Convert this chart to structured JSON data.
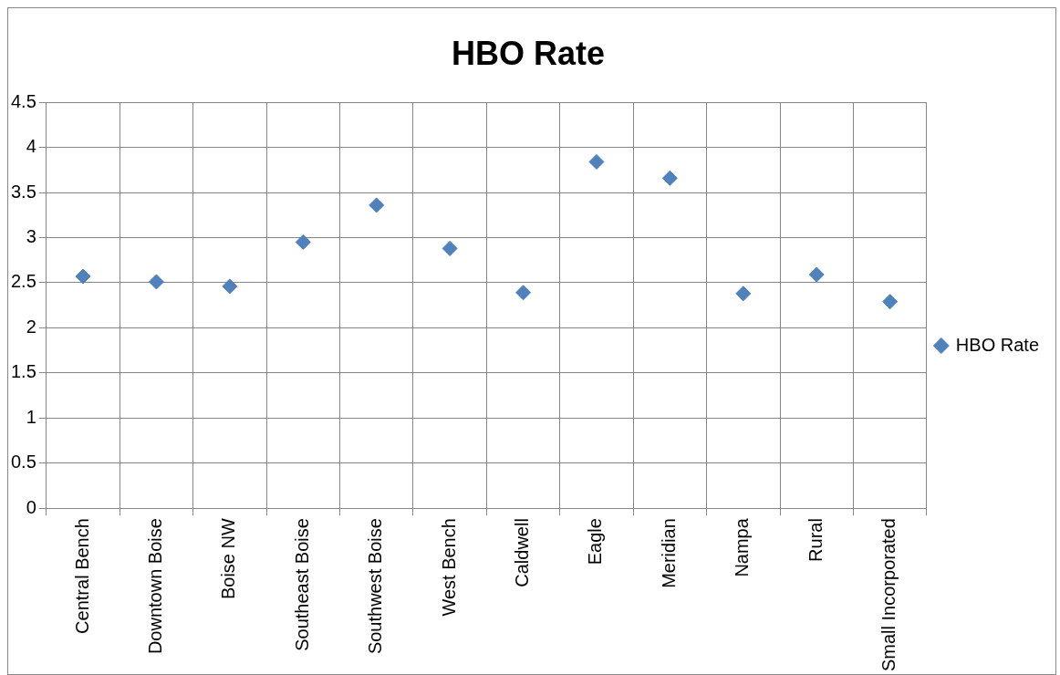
{
  "chart_data": {
    "type": "scatter",
    "title": "HBO Rate",
    "categories": [
      "Central Bench",
      "Downtown Boise",
      "Boise NW",
      "Southeast Boise",
      "Southwest Boise",
      "West Bench",
      "Caldwell",
      "Eagle",
      "Meridian",
      "Nampa",
      "Rural",
      "Small Incorporated"
    ],
    "series": [
      {
        "name": "HBO Rate",
        "color": "#4f81bd",
        "values": [
          2.57,
          2.51,
          2.46,
          2.95,
          3.36,
          2.88,
          2.39,
          3.84,
          3.66,
          2.38,
          2.59,
          2.29
        ]
      }
    ],
    "ylim": [
      0,
      4.5
    ],
    "yticks": [
      0,
      0.5,
      1,
      1.5,
      2,
      2.5,
      3,
      3.5,
      4,
      4.5
    ],
    "grid": true,
    "legend": "right",
    "marker": "diamond"
  }
}
